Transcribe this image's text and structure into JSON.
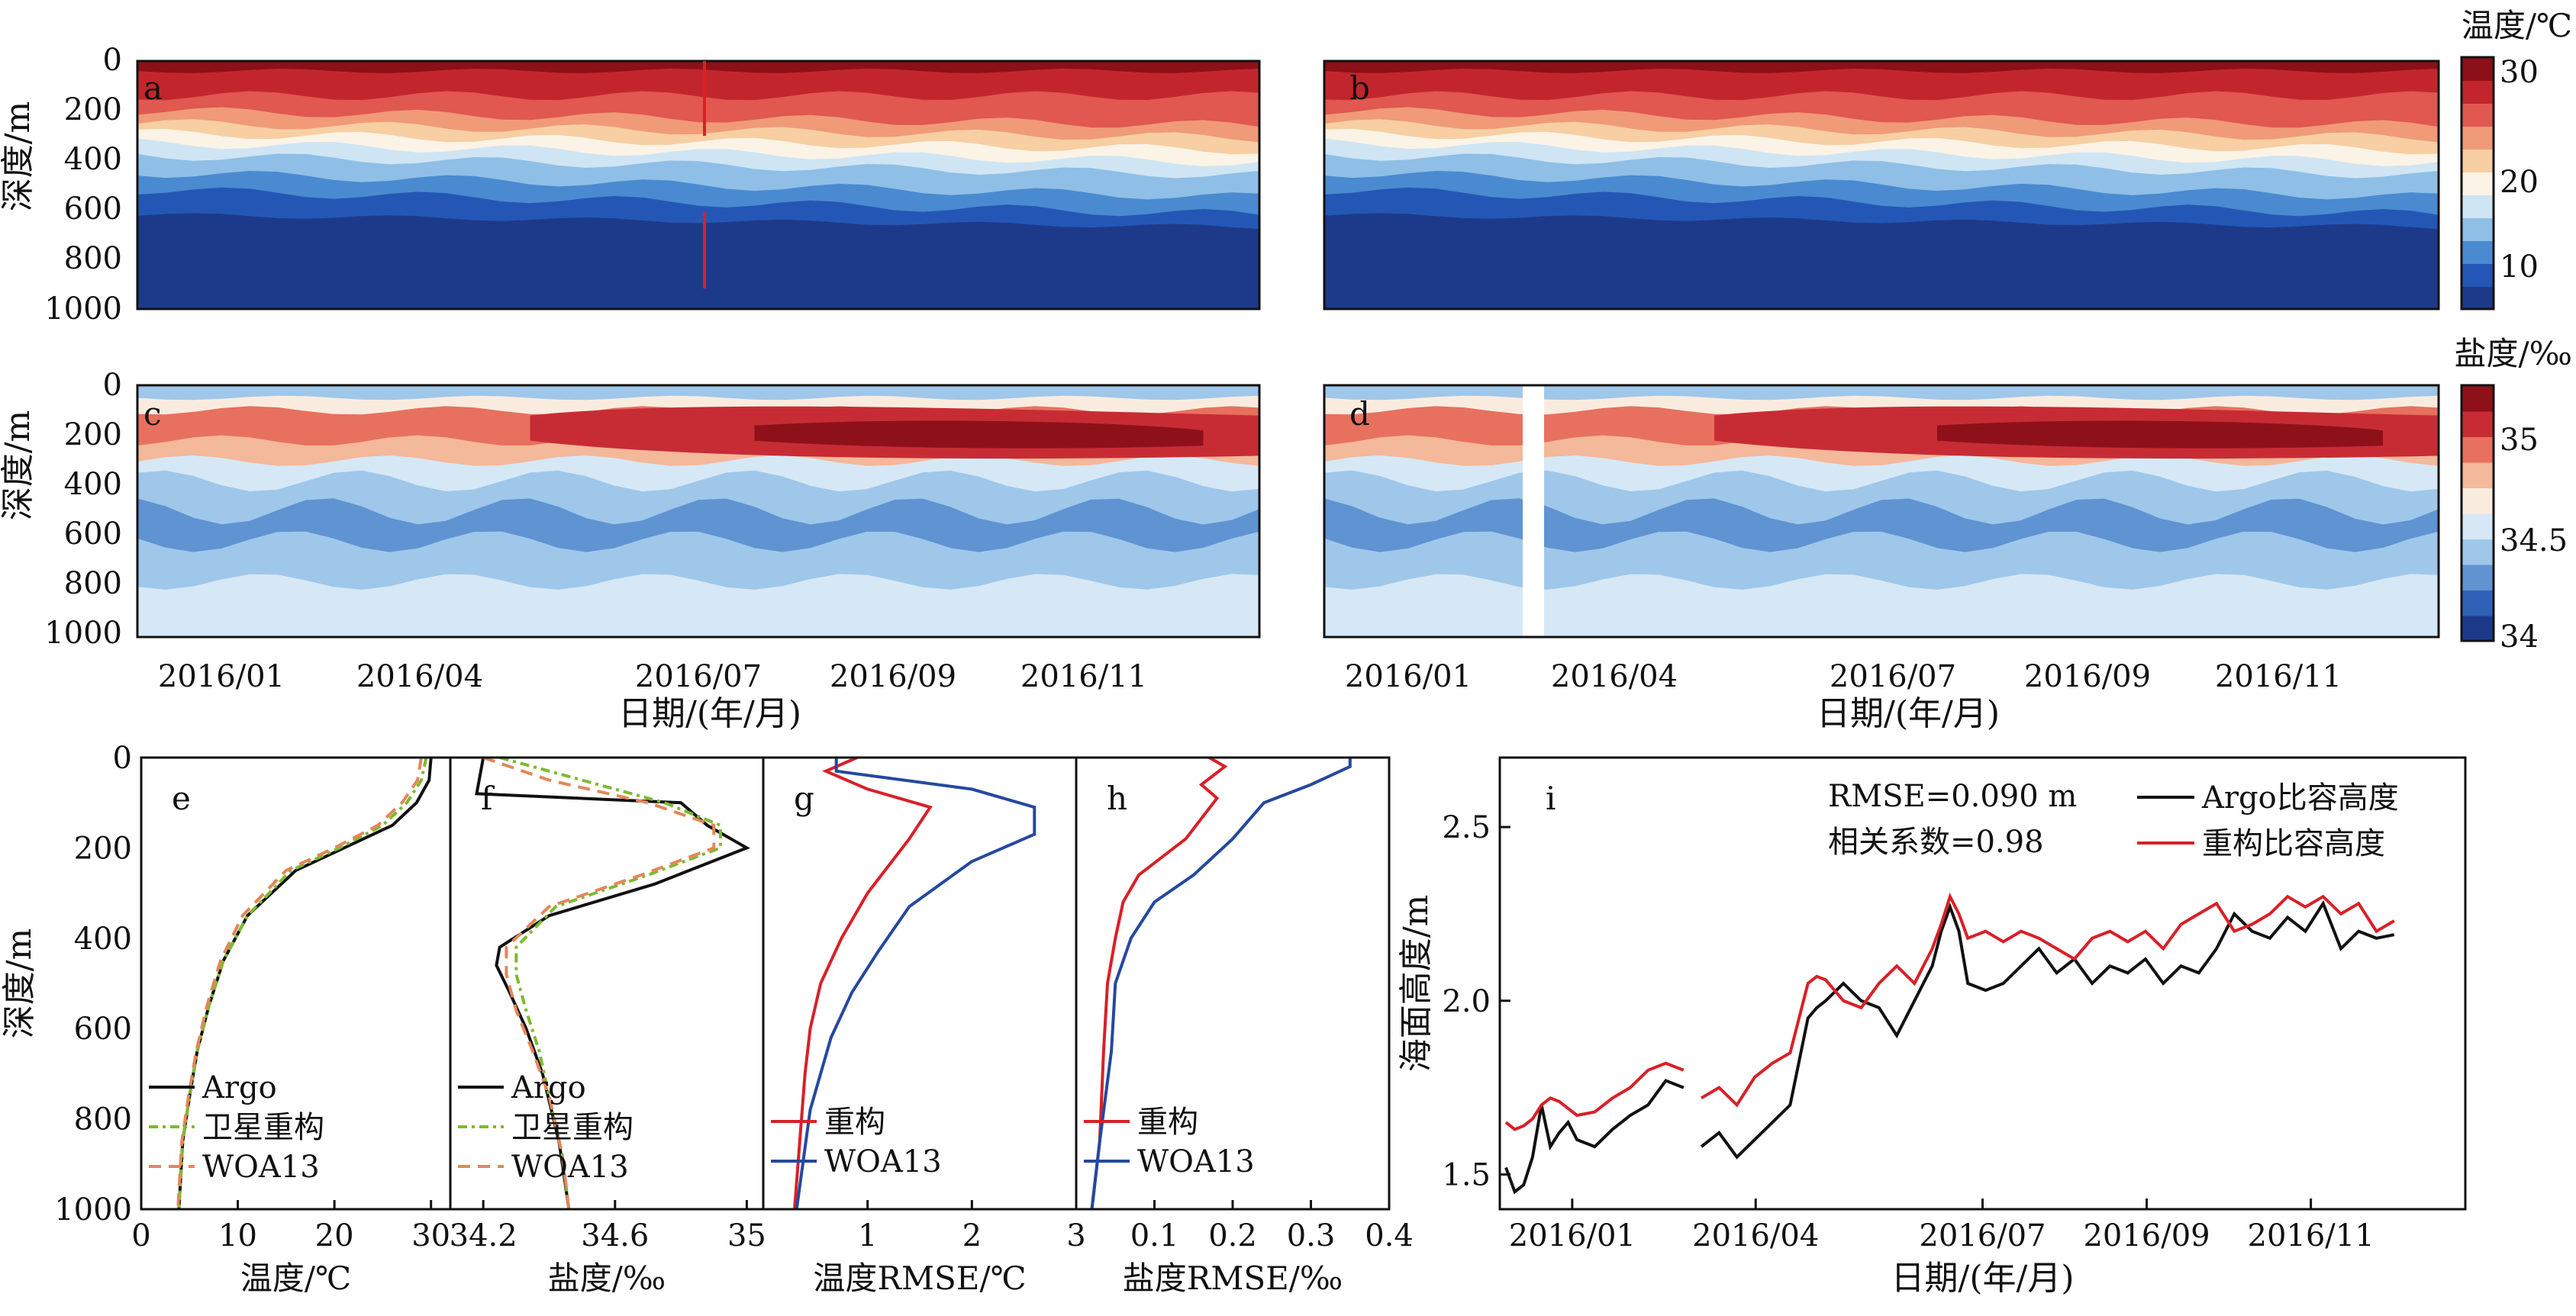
{
  "colors": {
    "temp_scale": [
      "#1d3a8a",
      "#2457b5",
      "#4a8ad0",
      "#8fbfe6",
      "#cfe5f4",
      "#fbf3e6",
      "#f7cfa3",
      "#f09a78",
      "#e0584f",
      "#c2262c",
      "#8c1018"
    ],
    "salt_scale": [
      "#1d3a8a",
      "#2f62b7",
      "#5f93d2",
      "#9fc7ea",
      "#d6e8f6",
      "#f9ecdf",
      "#f4b89a",
      "#e8705f",
      "#c72c35",
      "#8e1119"
    ],
    "argo": "#111111",
    "recon_green": "#7dbb2c",
    "woa_orange": "#e5865a",
    "recon_red": "#d92027",
    "woa_blue": "#2548a0"
  },
  "top": {
    "ylabel": "深度/m",
    "xlabel": "日期/(年/月)",
    "yticks": [
      "0",
      "200",
      "400",
      "600",
      "800",
      "1000"
    ],
    "xticks_left": [
      "2016/01",
      "2016/04",
      "2016/07",
      "2016/09",
      "2016/11"
    ],
    "xticks_right": [
      "2016/01",
      "2016/04",
      "2016/07",
      "2016/09",
      "2016/11"
    ],
    "panels": [
      {
        "label": "a"
      },
      {
        "label": "b"
      },
      {
        "label": "c"
      },
      {
        "label": "d"
      }
    ],
    "temp_cbar": {
      "title": "温度/℃",
      "ticks": [
        "30",
        "20",
        "10"
      ]
    },
    "salt_cbar": {
      "title": "盐度/‰",
      "ticks": [
        "35",
        "34.5",
        "34"
      ]
    }
  },
  "chart_data": [
    {
      "id": "e",
      "type": "line",
      "xlabel": "温度/℃",
      "ylabel": "深度/m",
      "xlim": [
        0,
        32
      ],
      "ylim": [
        1000,
        0
      ],
      "xticks": [
        "0",
        "10",
        "20",
        "30"
      ],
      "yticks": [
        "0",
        "200",
        "400",
        "600",
        "800",
        "1000"
      ],
      "series": [
        {
          "name": "Argo",
          "key": "argo",
          "x": [
            30,
            29.8,
            28.5,
            26,
            21,
            16,
            11,
            8.5,
            7,
            5.8,
            5,
            4.3,
            3.9
          ],
          "y": [
            0,
            50,
            100,
            150,
            200,
            250,
            350,
            450,
            550,
            650,
            750,
            850,
            1000
          ]
        },
        {
          "name": "卫星重构",
          "key": "recon_green",
          "dash": "12 6 4 6",
          "x": [
            29.5,
            29,
            27.5,
            25,
            20.5,
            15.5,
            11,
            8.5,
            7,
            5.8,
            5,
            4.3,
            3.9
          ],
          "y": [
            0,
            50,
            100,
            150,
            200,
            250,
            350,
            450,
            550,
            650,
            750,
            850,
            1000
          ]
        },
        {
          "name": "WOA13",
          "key": "woa_orange",
          "dash": "16 10",
          "x": [
            29,
            28.6,
            27,
            24.5,
            20,
            15,
            10.5,
            8.2,
            6.8,
            5.7,
            4.9,
            4.2,
            3.8
          ],
          "y": [
            0,
            50,
            100,
            150,
            200,
            250,
            350,
            450,
            550,
            650,
            750,
            850,
            1000
          ]
        }
      ]
    },
    {
      "id": "f",
      "type": "line",
      "xlabel": "盐度/‰",
      "xlim": [
        34.1,
        35.05
      ],
      "ylim": [
        1000,
        0
      ],
      "xticks": [
        "34.2",
        "34.6",
        "35"
      ],
      "series": [
        {
          "name": "Argo",
          "key": "argo",
          "x": [
            34.2,
            34.18,
            34.8,
            34.88,
            35,
            34.72,
            34.4,
            34.25,
            34.24,
            34.28,
            34.33,
            34.38,
            34.43,
            34.46
          ],
          "y": [
            0,
            80,
            100,
            150,
            200,
            280,
            350,
            420,
            460,
            520,
            600,
            700,
            850,
            1000
          ]
        },
        {
          "name": "卫星重构",
          "key": "recon_green",
          "dash": "12 6 4 6",
          "x": [
            34.25,
            34.5,
            34.75,
            34.92,
            34.92,
            34.7,
            34.42,
            34.3,
            34.3,
            34.33,
            34.37,
            34.4,
            34.44,
            34.46
          ],
          "y": [
            0,
            50,
            100,
            150,
            200,
            260,
            330,
            420,
            480,
            560,
            650,
            750,
            880,
            1000
          ]
        },
        {
          "name": "WOA13",
          "key": "woa_orange",
          "dash": "16 10",
          "x": [
            34.2,
            34.4,
            34.7,
            34.9,
            34.9,
            34.68,
            34.4,
            34.27,
            34.27,
            34.3,
            34.35,
            34.4,
            34.44,
            34.46
          ],
          "y": [
            0,
            50,
            100,
            150,
            200,
            260,
            330,
            420,
            480,
            560,
            650,
            750,
            880,
            1000
          ]
        }
      ]
    },
    {
      "id": "g",
      "type": "line",
      "xlabel": "温度RMSE/℃",
      "xlim": [
        0,
        3
      ],
      "ylim": [
        1000,
        0
      ],
      "xticks": [
        "1",
        "2",
        "3"
      ],
      "series": [
        {
          "name": "重构",
          "key": "recon_red",
          "x": [
            0.9,
            0.6,
            1.0,
            1.6,
            1.4,
            1.0,
            0.75,
            0.55,
            0.45,
            0.4,
            0.35,
            0.3
          ],
          "y": [
            0,
            30,
            70,
            110,
            180,
            300,
            400,
            500,
            600,
            700,
            850,
            1000
          ]
        },
        {
          "name": "WOA13",
          "key": "woa_blue",
          "x": [
            0.7,
            0.7,
            2.0,
            2.6,
            2.6,
            2.0,
            1.4,
            1.1,
            0.85,
            0.65,
            0.45,
            0.32
          ],
          "y": [
            0,
            30,
            70,
            110,
            170,
            230,
            330,
            430,
            520,
            620,
            780,
            1000
          ]
        }
      ]
    },
    {
      "id": "h",
      "type": "line",
      "xlabel": "盐度RMSE/‰",
      "xlim": [
        0,
        0.4
      ],
      "ylim": [
        1000,
        0
      ],
      "xticks": [
        "0.1",
        "0.2",
        "0.3",
        "0.4"
      ],
      "series": [
        {
          "name": "重构",
          "key": "recon_red",
          "x": [
            0.17,
            0.19,
            0.16,
            0.18,
            0.14,
            0.08,
            0.06,
            0.05,
            0.04,
            0.035,
            0.03,
            0.02
          ],
          "y": [
            0,
            20,
            60,
            90,
            180,
            260,
            320,
            400,
            500,
            650,
            850,
            1000
          ]
        },
        {
          "name": "WOA13",
          "key": "woa_blue",
          "x": [
            0.35,
            0.35,
            0.3,
            0.24,
            0.2,
            0.15,
            0.1,
            0.07,
            0.05,
            0.045,
            0.03,
            0.02
          ],
          "y": [
            0,
            20,
            60,
            100,
            180,
            260,
            320,
            400,
            500,
            650,
            850,
            1000
          ]
        }
      ]
    },
    {
      "id": "i",
      "type": "line",
      "xlabel": "日期/(年/月)",
      "ylabel": "海面高度/m",
      "ylim": [
        1.4,
        2.7
      ],
      "yticks": [
        "1.5",
        "2.0",
        "2.5"
      ],
      "xticks": [
        "2016/01",
        "2016/04",
        "2016/07",
        "2016/09",
        "2016/11"
      ],
      "xtick_positions": [
        0.075,
        0.265,
        0.5,
        0.67,
        0.84
      ],
      "annotations": [
        "RMSE=0.090 m",
        "相关系数=0.98"
      ],
      "series": [
        {
          "name": "Argo比容高度",
          "key": "argo",
          "t": [
            0,
            0.01,
            0.02,
            0.03,
            0.04,
            0.05,
            0.06,
            0.07,
            0.08,
            0.1,
            0.12,
            0.14,
            0.16,
            0.18,
            0.2,
            0.21,
            0.22,
            0.24,
            0.26,
            0.28,
            0.3,
            0.32,
            0.34,
            0.35,
            0.36,
            0.38,
            0.4,
            0.42,
            0.44,
            0.46,
            0.48,
            0.49,
            0.5,
            0.51,
            0.52,
            0.54,
            0.56,
            0.58,
            0.6,
            0.62,
            0.64,
            0.66,
            0.68,
            0.7,
            0.72,
            0.74,
            0.76,
            0.78,
            0.8,
            0.82,
            0.84,
            0.86,
            0.88,
            0.9,
            0.92,
            0.94,
            0.96,
            0.98,
            1.0
          ],
          "y": [
            1.52,
            1.45,
            1.47,
            1.55,
            1.7,
            1.58,
            1.62,
            1.65,
            1.6,
            1.58,
            1.63,
            1.67,
            1.7,
            1.77,
            1.75,
            null,
            1.58,
            1.62,
            1.55,
            1.6,
            1.65,
            1.7,
            1.95,
            1.98,
            2.0,
            2.05,
            2.0,
            1.98,
            1.9,
            2.0,
            2.1,
            2.2,
            2.27,
            2.2,
            2.05,
            2.03,
            2.05,
            2.1,
            2.15,
            2.08,
            2.12,
            2.05,
            2.1,
            2.08,
            2.12,
            2.05,
            2.1,
            2.08,
            2.15,
            2.25,
            2.2,
            2.18,
            2.24,
            2.2,
            2.28,
            2.15,
            2.2,
            2.18,
            2.19
          ]
        },
        {
          "name": "重构比容高度",
          "key": "recon_red",
          "t": [
            0,
            0.01,
            0.02,
            0.03,
            0.04,
            0.05,
            0.06,
            0.07,
            0.08,
            0.1,
            0.12,
            0.14,
            0.16,
            0.18,
            0.2,
            0.21,
            0.22,
            0.24,
            0.26,
            0.28,
            0.3,
            0.32,
            0.34,
            0.35,
            0.36,
            0.38,
            0.4,
            0.42,
            0.44,
            0.46,
            0.48,
            0.49,
            0.5,
            0.51,
            0.52,
            0.54,
            0.56,
            0.58,
            0.6,
            0.62,
            0.64,
            0.66,
            0.68,
            0.7,
            0.72,
            0.74,
            0.76,
            0.78,
            0.8,
            0.82,
            0.84,
            0.86,
            0.88,
            0.9,
            0.92,
            0.94,
            0.96,
            0.98,
            1.0
          ],
          "y": [
            1.65,
            1.63,
            1.64,
            1.66,
            1.7,
            1.72,
            1.71,
            1.69,
            1.67,
            1.68,
            1.72,
            1.75,
            1.8,
            1.82,
            1.8,
            null,
            1.72,
            1.75,
            1.7,
            1.78,
            1.82,
            1.85,
            2.05,
            2.07,
            2.06,
            2.0,
            1.98,
            2.05,
            2.1,
            2.05,
            2.15,
            2.22,
            2.3,
            2.25,
            2.18,
            2.2,
            2.17,
            2.2,
            2.18,
            2.15,
            2.12,
            2.18,
            2.2,
            2.17,
            2.2,
            2.15,
            2.22,
            2.25,
            2.28,
            2.2,
            2.22,
            2.25,
            2.3,
            2.27,
            2.3,
            2.25,
            2.28,
            2.2,
            2.23
          ]
        }
      ]
    }
  ]
}
